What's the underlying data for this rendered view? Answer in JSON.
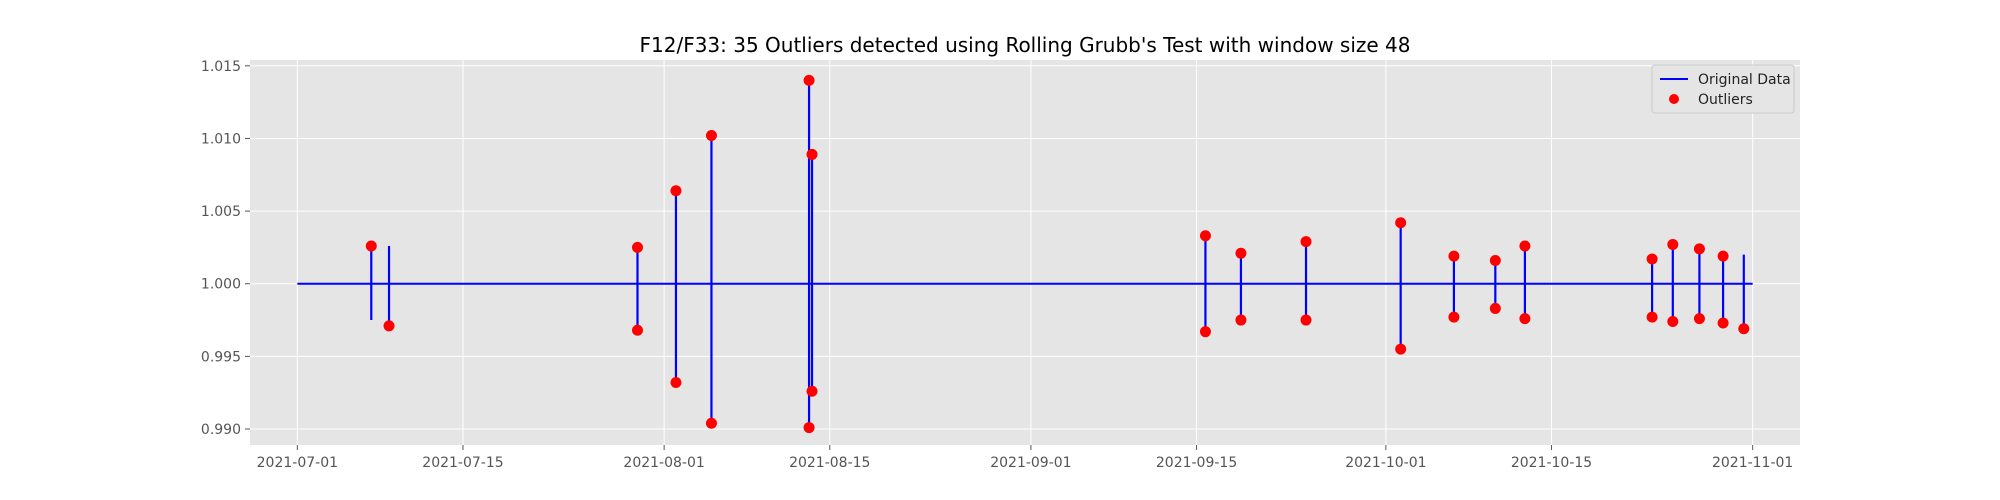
{
  "chart_data": {
    "type": "line",
    "title": "F12/F33: 35 Outliers detected using Rolling Grubb's Test with window size 48",
    "xlabel": "",
    "ylabel": "",
    "xlim": [
      "2021-06-27",
      "2021-11-05"
    ],
    "ylim": [
      0.9889,
      1.0154
    ],
    "x_ticks": [
      "2021-07-01",
      "2021-07-15",
      "2021-08-01",
      "2021-08-15",
      "2021-09-01",
      "2021-09-15",
      "2021-10-01",
      "2021-10-15",
      "2021-11-01"
    ],
    "y_ticks": [
      "0.990",
      "0.995",
      "1.000",
      "1.005",
      "1.010",
      "1.015"
    ],
    "grid": true,
    "legend": {
      "placement": "top-right",
      "entries": [
        "Original Data",
        "Outliers"
      ]
    },
    "colors": {
      "line": "#0000ff",
      "outlier": "#ff0000",
      "background": "#e5e5e5",
      "grid": "#ffffff"
    },
    "baseline": 1.0,
    "x_range": [
      "2021-07-01",
      "2021-11-01"
    ],
    "spikes": [
      {
        "x": "2021-07-07 06:00",
        "low": 0.9975,
        "high": 1.0026
      },
      {
        "x": "2021-07-08 18:00",
        "low": 0.9971,
        "high": 1.0026
      },
      {
        "x": "2021-07-29 18:00",
        "low": 0.9968,
        "high": 1.0025
      },
      {
        "x": "2021-08-02 00:00",
        "low": 0.9932,
        "high": 1.0064
      },
      {
        "x": "2021-08-05 00:00",
        "low": 0.9904,
        "high": 1.0102
      },
      {
        "x": "2021-08-13 06:00",
        "low": 0.9901,
        "high": 1.014
      },
      {
        "x": "2021-08-13 12:00",
        "low": 0.9926,
        "high": 1.0089
      },
      {
        "x": "2021-09-15 18:00",
        "low": 0.9967,
        "high": 1.0033
      },
      {
        "x": "2021-09-18 18:00",
        "low": 0.9975,
        "high": 1.0021
      },
      {
        "x": "2021-09-24 06:00",
        "low": 0.9975,
        "high": 1.0029
      },
      {
        "x": "2021-10-02 06:00",
        "low": 0.9955,
        "high": 1.0042
      },
      {
        "x": "2021-10-06 18:00",
        "low": 0.9977,
        "high": 1.0019
      },
      {
        "x": "2021-10-10 06:00",
        "low": 0.9983,
        "high": 1.0016
      },
      {
        "x": "2021-10-12 18:00",
        "low": 0.9976,
        "high": 1.0026
      },
      {
        "x": "2021-10-23 12:00",
        "low": 0.9977,
        "high": 1.0017
      },
      {
        "x": "2021-10-25 06:00",
        "low": 0.9974,
        "high": 1.0027
      },
      {
        "x": "2021-10-27 12:00",
        "low": 0.9976,
        "high": 1.0024
      },
      {
        "x": "2021-10-29 12:00",
        "low": 0.9973,
        "high": 1.0019
      },
      {
        "x": "2021-10-31 06:00",
        "low": 0.9969,
        "high": 1.002
      }
    ],
    "outliers": [
      {
        "x": "2021-07-07 06:00",
        "y": 1.0026
      },
      {
        "x": "2021-07-08 18:00",
        "y": 0.9971
      },
      {
        "x": "2021-07-29 18:00",
        "y": 1.0025
      },
      {
        "x": "2021-07-29 18:00",
        "y": 0.9968
      },
      {
        "x": "2021-08-02 00:00",
        "y": 1.0064
      },
      {
        "x": "2021-08-02 00:00",
        "y": 0.9932
      },
      {
        "x": "2021-08-05 00:00",
        "y": 1.0102
      },
      {
        "x": "2021-08-05 00:00",
        "y": 0.9904
      },
      {
        "x": "2021-08-13 06:00",
        "y": 1.014
      },
      {
        "x": "2021-08-13 06:00",
        "y": 0.9901
      },
      {
        "x": "2021-08-13 12:00",
        "y": 1.0089
      },
      {
        "x": "2021-08-13 12:00",
        "y": 0.9926
      },
      {
        "x": "2021-09-15 18:00",
        "y": 1.0033
      },
      {
        "x": "2021-09-15 18:00",
        "y": 0.9967
      },
      {
        "x": "2021-09-18 18:00",
        "y": 1.0021
      },
      {
        "x": "2021-09-18 18:00",
        "y": 0.9975
      },
      {
        "x": "2021-09-24 06:00",
        "y": 1.0029
      },
      {
        "x": "2021-09-24 06:00",
        "y": 0.9975
      },
      {
        "x": "2021-10-02 06:00",
        "y": 1.0042
      },
      {
        "x": "2021-10-02 06:00",
        "y": 0.9955
      },
      {
        "x": "2021-10-06 18:00",
        "y": 1.0019
      },
      {
        "x": "2021-10-06 18:00",
        "y": 0.9977
      },
      {
        "x": "2021-10-10 06:00",
        "y": 1.0016
      },
      {
        "x": "2021-10-10 06:00",
        "y": 0.9983
      },
      {
        "x": "2021-10-12 18:00",
        "y": 1.0026
      },
      {
        "x": "2021-10-12 18:00",
        "y": 0.9976
      },
      {
        "x": "2021-10-23 12:00",
        "y": 1.0017
      },
      {
        "x": "2021-10-23 12:00",
        "y": 0.9977
      },
      {
        "x": "2021-10-25 06:00",
        "y": 1.0027
      },
      {
        "x": "2021-10-25 06:00",
        "y": 0.9974
      },
      {
        "x": "2021-10-27 12:00",
        "y": 1.0024
      },
      {
        "x": "2021-10-27 12:00",
        "y": 0.9976
      },
      {
        "x": "2021-10-29 12:00",
        "y": 1.0019
      },
      {
        "x": "2021-10-29 12:00",
        "y": 0.9973
      },
      {
        "x": "2021-10-31 06:00",
        "y": 0.9969
      }
    ]
  }
}
